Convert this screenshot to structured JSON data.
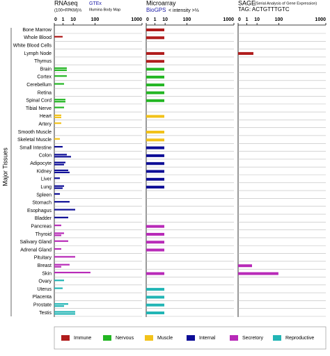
{
  "chart_data": {
    "type": "bar",
    "y_label": "Major Tissues",
    "categories": [
      "Bone Marrow",
      "Whole Blood",
      "White Blood Cells",
      "Lymph Node",
      "Thymus",
      "Brain",
      "Cortex",
      "Cerebellum",
      "Retina",
      "Spinal Cord",
      "Tibial Nerve",
      "Heart",
      "Artery",
      "Smooth Muscle",
      "Skeletal Muscle",
      "Small Intestine",
      "Colon",
      "Adipocyte",
      "Kidney",
      "Liver",
      "Lung",
      "Spleen",
      "Stomach",
      "Esophagus",
      "Bladder",
      "Pancreas",
      "Thyroid",
      "Salivary Gland",
      "Adrenal Gland",
      "Pituitary",
      "Breast",
      "Skin",
      "Ovary",
      "Uterus",
      "Placenta",
      "Prostate",
      "Testis"
    ],
    "group": [
      0,
      0,
      0,
      0,
      0,
      1,
      1,
      1,
      1,
      1,
      1,
      2,
      2,
      2,
      2,
      3,
      3,
      3,
      3,
      3,
      3,
      3,
      3,
      3,
      3,
      4,
      4,
      4,
      4,
      4,
      4,
      4,
      5,
      5,
      5,
      5,
      5
    ],
    "legend": [
      {
        "name": "Immune",
        "color": "#b01c1c"
      },
      {
        "name": "Nervous",
        "color": "#22b622"
      },
      {
        "name": "Muscle",
        "color": "#f2c21a"
      },
      {
        "name": "Internal",
        "color": "#0d0d96"
      },
      {
        "name": "Secretory",
        "color": "#b82ab8"
      },
      {
        "name": "Reproductive",
        "color": "#22b5b5"
      }
    ],
    "panels": [
      {
        "title": "RNAseq",
        "subtitle": "(100×FPKM)⅓",
        "xlim": [
          0,
          1000
        ],
        "xticks": [
          0,
          1,
          10,
          100,
          1000
        ],
        "series": [
          {
            "name": "GTEx",
            "values": [
              null,
              0.86,
              null,
              null,
              null,
              2.9,
              2.9,
              1.37,
              null,
              2.05,
              1.37,
              0.5,
              0.5,
              null,
              0.26,
              0.86,
              2.9,
              2.05,
              4,
              0.26,
              1.37,
              0.26,
              5.3,
              13.5,
              4,
              0.5,
              1.37,
              4,
              0.5,
              13.5,
              5.3,
              70,
              1.37,
              0.86,
              null,
              4,
              13.5
            ]
          },
          {
            "name": "Illumina Body Map",
            "values": [
              null,
              null,
              null,
              null,
              null,
              2.9,
              null,
              null,
              null,
              2.05,
              null,
              0.5,
              null,
              null,
              null,
              null,
              6.9,
              1.37,
              5.3,
              null,
              0.86,
              null,
              null,
              null,
              null,
              null,
              0.5,
              null,
              null,
              null,
              0.5,
              null,
              null,
              null,
              null,
              1.37,
              13.5
            ]
          }
        ]
      },
      {
        "title": "Microarray",
        "subtitle": "< intensity >⅓",
        "xlim": [
          0,
          1000
        ],
        "xticks": [
          0,
          1,
          10,
          100,
          1000
        ],
        "series": [
          {
            "name": "BioGPS",
            "values": [
              8.8,
              8.8,
              null,
              8.8,
              8.8,
              8.8,
              8.8,
              8.8,
              8.8,
              8.8,
              null,
              8.8,
              null,
              8.8,
              8.8,
              8.8,
              8.8,
              8.8,
              8.8,
              8.8,
              8.8,
              null,
              null,
              null,
              null,
              8.8,
              8.8,
              8.8,
              8.8,
              null,
              null,
              8.8,
              null,
              8.8,
              8.8,
              8.8,
              8.8
            ]
          }
        ]
      },
      {
        "title": "SAGE",
        "subtitle": "(Serial Analysis of Gene Expression)",
        "tag": "TAG: ACTGTTTGTC",
        "xlim": [
          0,
          1000
        ],
        "xticks": [
          0,
          1,
          10,
          100,
          1000
        ],
        "series": [
          {
            "values": [
              null,
              null,
              null,
              5.3,
              null,
              null,
              null,
              null,
              null,
              null,
              null,
              null,
              null,
              null,
              null,
              null,
              null,
              null,
              null,
              null,
              null,
              null,
              null,
              null,
              null,
              null,
              null,
              null,
              null,
              null,
              4,
              97,
              null,
              null,
              null,
              null,
              null
            ]
          }
        ]
      }
    ]
  }
}
